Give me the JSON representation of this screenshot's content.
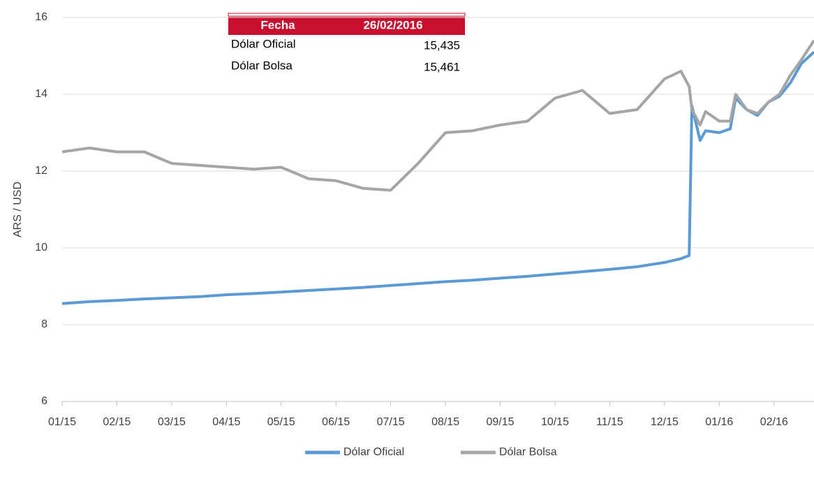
{
  "chart_data": {
    "type": "line",
    "y_label": "ARS / USD",
    "x": [
      0,
      0.5,
      1,
      1.5,
      2,
      2.5,
      3,
      3.5,
      4,
      4.5,
      5,
      5.5,
      6,
      6.5,
      7,
      7.5,
      8,
      8.5,
      9,
      9.5,
      10,
      10.5,
      11,
      11.3,
      11.45,
      11.5,
      11.65,
      11.75,
      12.0,
      12.2,
      12.3,
      12.5,
      12.7,
      12.9,
      13.1,
      13.3,
      13.5,
      13.73
    ],
    "series": [
      {
        "name": "Dólar Oficial",
        "color": "#5b9bd5",
        "values": [
          8.55,
          8.6,
          8.63,
          8.67,
          8.7,
          8.73,
          8.78,
          8.81,
          8.85,
          8.89,
          8.93,
          8.97,
          9.02,
          9.07,
          9.12,
          9.16,
          9.21,
          9.26,
          9.32,
          9.38,
          9.44,
          9.51,
          9.62,
          9.72,
          9.8,
          13.7,
          12.8,
          13.05,
          13.0,
          13.1,
          13.9,
          13.6,
          13.45,
          13.8,
          13.95,
          14.3,
          14.8,
          15.1
        ]
      },
      {
        "name": "Dólar Bolsa",
        "color": "#a5a5a5",
        "values": [
          12.5,
          12.6,
          12.5,
          12.5,
          12.2,
          12.15,
          12.1,
          12.05,
          12.1,
          11.8,
          11.75,
          11.55,
          11.5,
          12.2,
          13.0,
          13.05,
          13.2,
          13.3,
          13.9,
          14.1,
          13.5,
          13.6,
          14.4,
          14.6,
          14.2,
          13.6,
          13.2,
          13.55,
          13.3,
          13.3,
          14.0,
          13.6,
          13.5,
          13.8,
          14.0,
          14.5,
          14.9,
          15.4
        ]
      }
    ],
    "xlim": [
      0,
      13.73
    ],
    "xticks": [
      {
        "value": 0,
        "label": "01/15"
      },
      {
        "value": 1,
        "label": "02/15"
      },
      {
        "value": 2,
        "label": "03/15"
      },
      {
        "value": 3,
        "label": "04/15"
      },
      {
        "value": 4,
        "label": "05/15"
      },
      {
        "value": 5,
        "label": "06/15"
      },
      {
        "value": 6,
        "label": "07/15"
      },
      {
        "value": 7,
        "label": "08/15"
      },
      {
        "value": 8,
        "label": "09/15"
      },
      {
        "value": 9,
        "label": "10/15"
      },
      {
        "value": 10,
        "label": "11/15"
      },
      {
        "value": 11,
        "label": "12/15"
      },
      {
        "value": 12,
        "label": "01/16"
      },
      {
        "value": 13,
        "label": "02/16"
      }
    ],
    "ylim": [
      6,
      16
    ],
    "yticks": [
      6,
      8,
      10,
      12,
      14,
      16
    ],
    "grid": true,
    "legend": "bottom",
    "info_table": {
      "header": [
        "Fecha",
        "26/02/2016"
      ],
      "rows": [
        [
          "Dólar Oficial",
          "15,435"
        ],
        [
          "Dólar Bolsa",
          "15,461"
        ]
      ]
    }
  }
}
